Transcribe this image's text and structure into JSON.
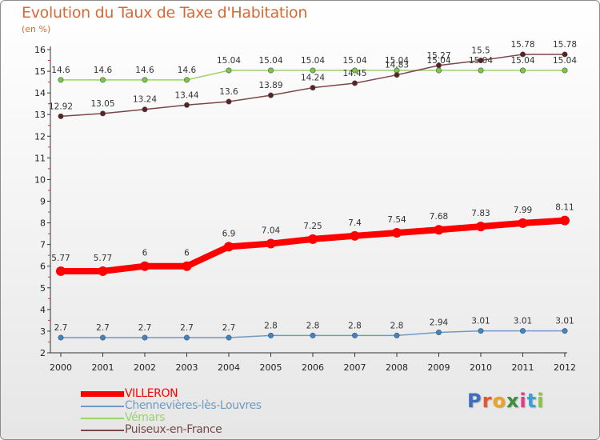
{
  "title": "Evolution du Taux de Taxe d'Habitation",
  "subtitle": "(en %)",
  "logo": {
    "text": "Proxiti",
    "colors": [
      "#3d6fc0",
      "#e8552b",
      "#f0a21d",
      "#3c8f3c",
      "#e03a8c",
      "#3aa0d8",
      "#8bc43f"
    ]
  },
  "chart_data": {
    "type": "line",
    "title": "Evolution du Taux de Taxe d'Habitation",
    "ylabel": "(en %)",
    "xlabel": "",
    "x": [
      "2000",
      "2001",
      "2002",
      "2003",
      "2004",
      "2005",
      "2006",
      "2007",
      "2008",
      "2009",
      "2010",
      "2011",
      "2012"
    ],
    "ylim": [
      2,
      16
    ],
    "yticks": [
      2,
      3,
      4,
      5,
      6,
      7,
      8,
      9,
      10,
      11,
      12,
      13,
      14,
      15,
      16
    ],
    "grid": false,
    "legend": "bottom-left",
    "series": [
      {
        "name": "VILLERON",
        "color": "#ff0000",
        "marker_color": "#ff0000",
        "emphasis": true,
        "values": [
          5.77,
          5.77,
          6,
          6,
          6.9,
          7.04,
          7.25,
          7.4,
          7.54,
          7.68,
          7.83,
          7.99,
          8.11
        ],
        "labels": [
          "5.77",
          "5.77",
          "6",
          "6",
          "6.9",
          "7.04",
          "7.25",
          "7.4",
          "7.54",
          "7.68",
          "7.83",
          "7.99",
          "8.11"
        ]
      },
      {
        "name": "Chennevières-lès-Louvres",
        "color": "#6f9ac4",
        "marker_color": "#3f84c4",
        "emphasis": false,
        "values": [
          2.7,
          2.7,
          2.7,
          2.7,
          2.7,
          2.8,
          2.8,
          2.8,
          2.8,
          2.94,
          3.01,
          3.01,
          3.01
        ],
        "labels": [
          "2.7",
          "2.7",
          "2.7",
          "2.7",
          "2.7",
          "2.8",
          "2.8",
          "2.8",
          "2.8",
          "2.94",
          "3.01",
          "3.01",
          "3.01"
        ]
      },
      {
        "name": "Vémars",
        "color": "#9ad36a",
        "marker_color": "#7ac943",
        "emphasis": false,
        "values": [
          14.6,
          14.6,
          14.6,
          14.6,
          15.04,
          15.04,
          15.04,
          15.04,
          15.04,
          15.04,
          15.04,
          15.04,
          15.04
        ],
        "labels": [
          "14.6",
          "14.6",
          "14.6",
          "14.6",
          "15.04",
          "15.04",
          "15.04",
          "15.04",
          "15.04",
          "15.04",
          "15.04",
          "15.04",
          "15.04"
        ]
      },
      {
        "name": "Puiseux-en-France",
        "color": "#7a4848",
        "marker_color": "#5c2222",
        "emphasis": false,
        "values": [
          12.92,
          13.05,
          13.24,
          13.44,
          13.6,
          13.89,
          14.24,
          14.45,
          14.83,
          15.27,
          15.5,
          15.78,
          15.78
        ],
        "labels": [
          "12.92",
          "13.05",
          "13.24",
          "13.44",
          "13.6",
          "13.89",
          "14.24",
          "14.45",
          "14.83",
          "15.27",
          "15.5",
          "15.78",
          "15.78"
        ]
      }
    ]
  }
}
